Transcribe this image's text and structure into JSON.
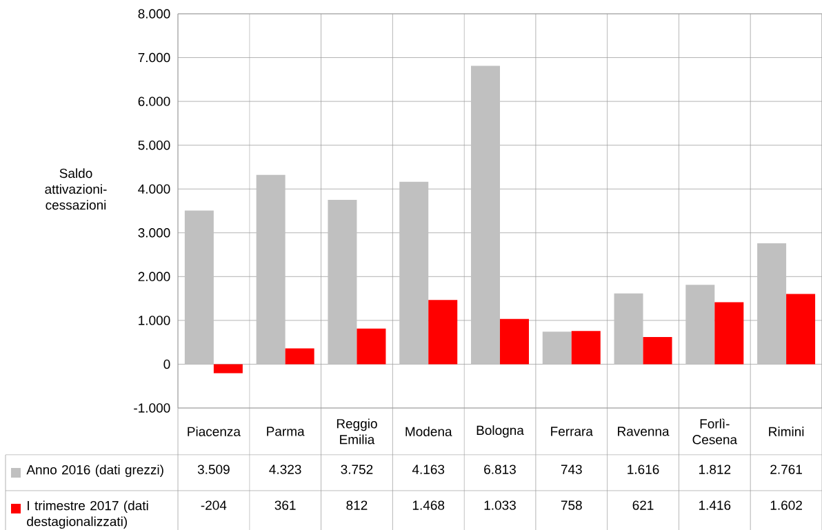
{
  "chart_data": {
    "type": "bar",
    "ylabel": "Saldo attivazioni-cessazioni",
    "categories": [
      "Piacenza",
      "Parma",
      "Reggio Emilia",
      "Modena",
      "Bologna",
      "Ferrara",
      "Ravenna",
      "Forlì-Cesena",
      "Rimini"
    ],
    "series": [
      {
        "name": "Anno 2016 (dati grezzi)",
        "color": "#c0c0c0",
        "values": [
          3509,
          4323,
          3752,
          4163,
          6813,
          743,
          1616,
          1812,
          2761
        ],
        "value_labels": [
          "3.509",
          "4.323",
          "3.752",
          "4.163",
          "6.813",
          "743",
          "1.616",
          "1.812",
          "2.761"
        ]
      },
      {
        "name": "I trimestre 2017 (dati destagionalizzati)",
        "color": "#ff0000",
        "values": [
          -204,
          361,
          812,
          1468,
          1033,
          758,
          621,
          1416,
          1602
        ],
        "value_labels": [
          "-204",
          "361",
          "812",
          "1.468",
          "1.033",
          "758",
          "621",
          "1.416",
          "1.602"
        ]
      }
    ],
    "ylim": [
      -1000,
      8000
    ],
    "yticks": [
      {
        "value": -1000,
        "label": "-1.000"
      },
      {
        "value": 0,
        "label": "0"
      },
      {
        "value": 1000,
        "label": "1.000"
      },
      {
        "value": 2000,
        "label": "2.000"
      },
      {
        "value": 3000,
        "label": "3.000"
      },
      {
        "value": 4000,
        "label": "4.000"
      },
      {
        "value": 5000,
        "label": "5.000"
      },
      {
        "value": 6000,
        "label": "6.000"
      },
      {
        "value": 7000,
        "label": "7.000"
      },
      {
        "value": 8000,
        "label": "8.000"
      }
    ],
    "grid": true,
    "legend": "bottom"
  }
}
